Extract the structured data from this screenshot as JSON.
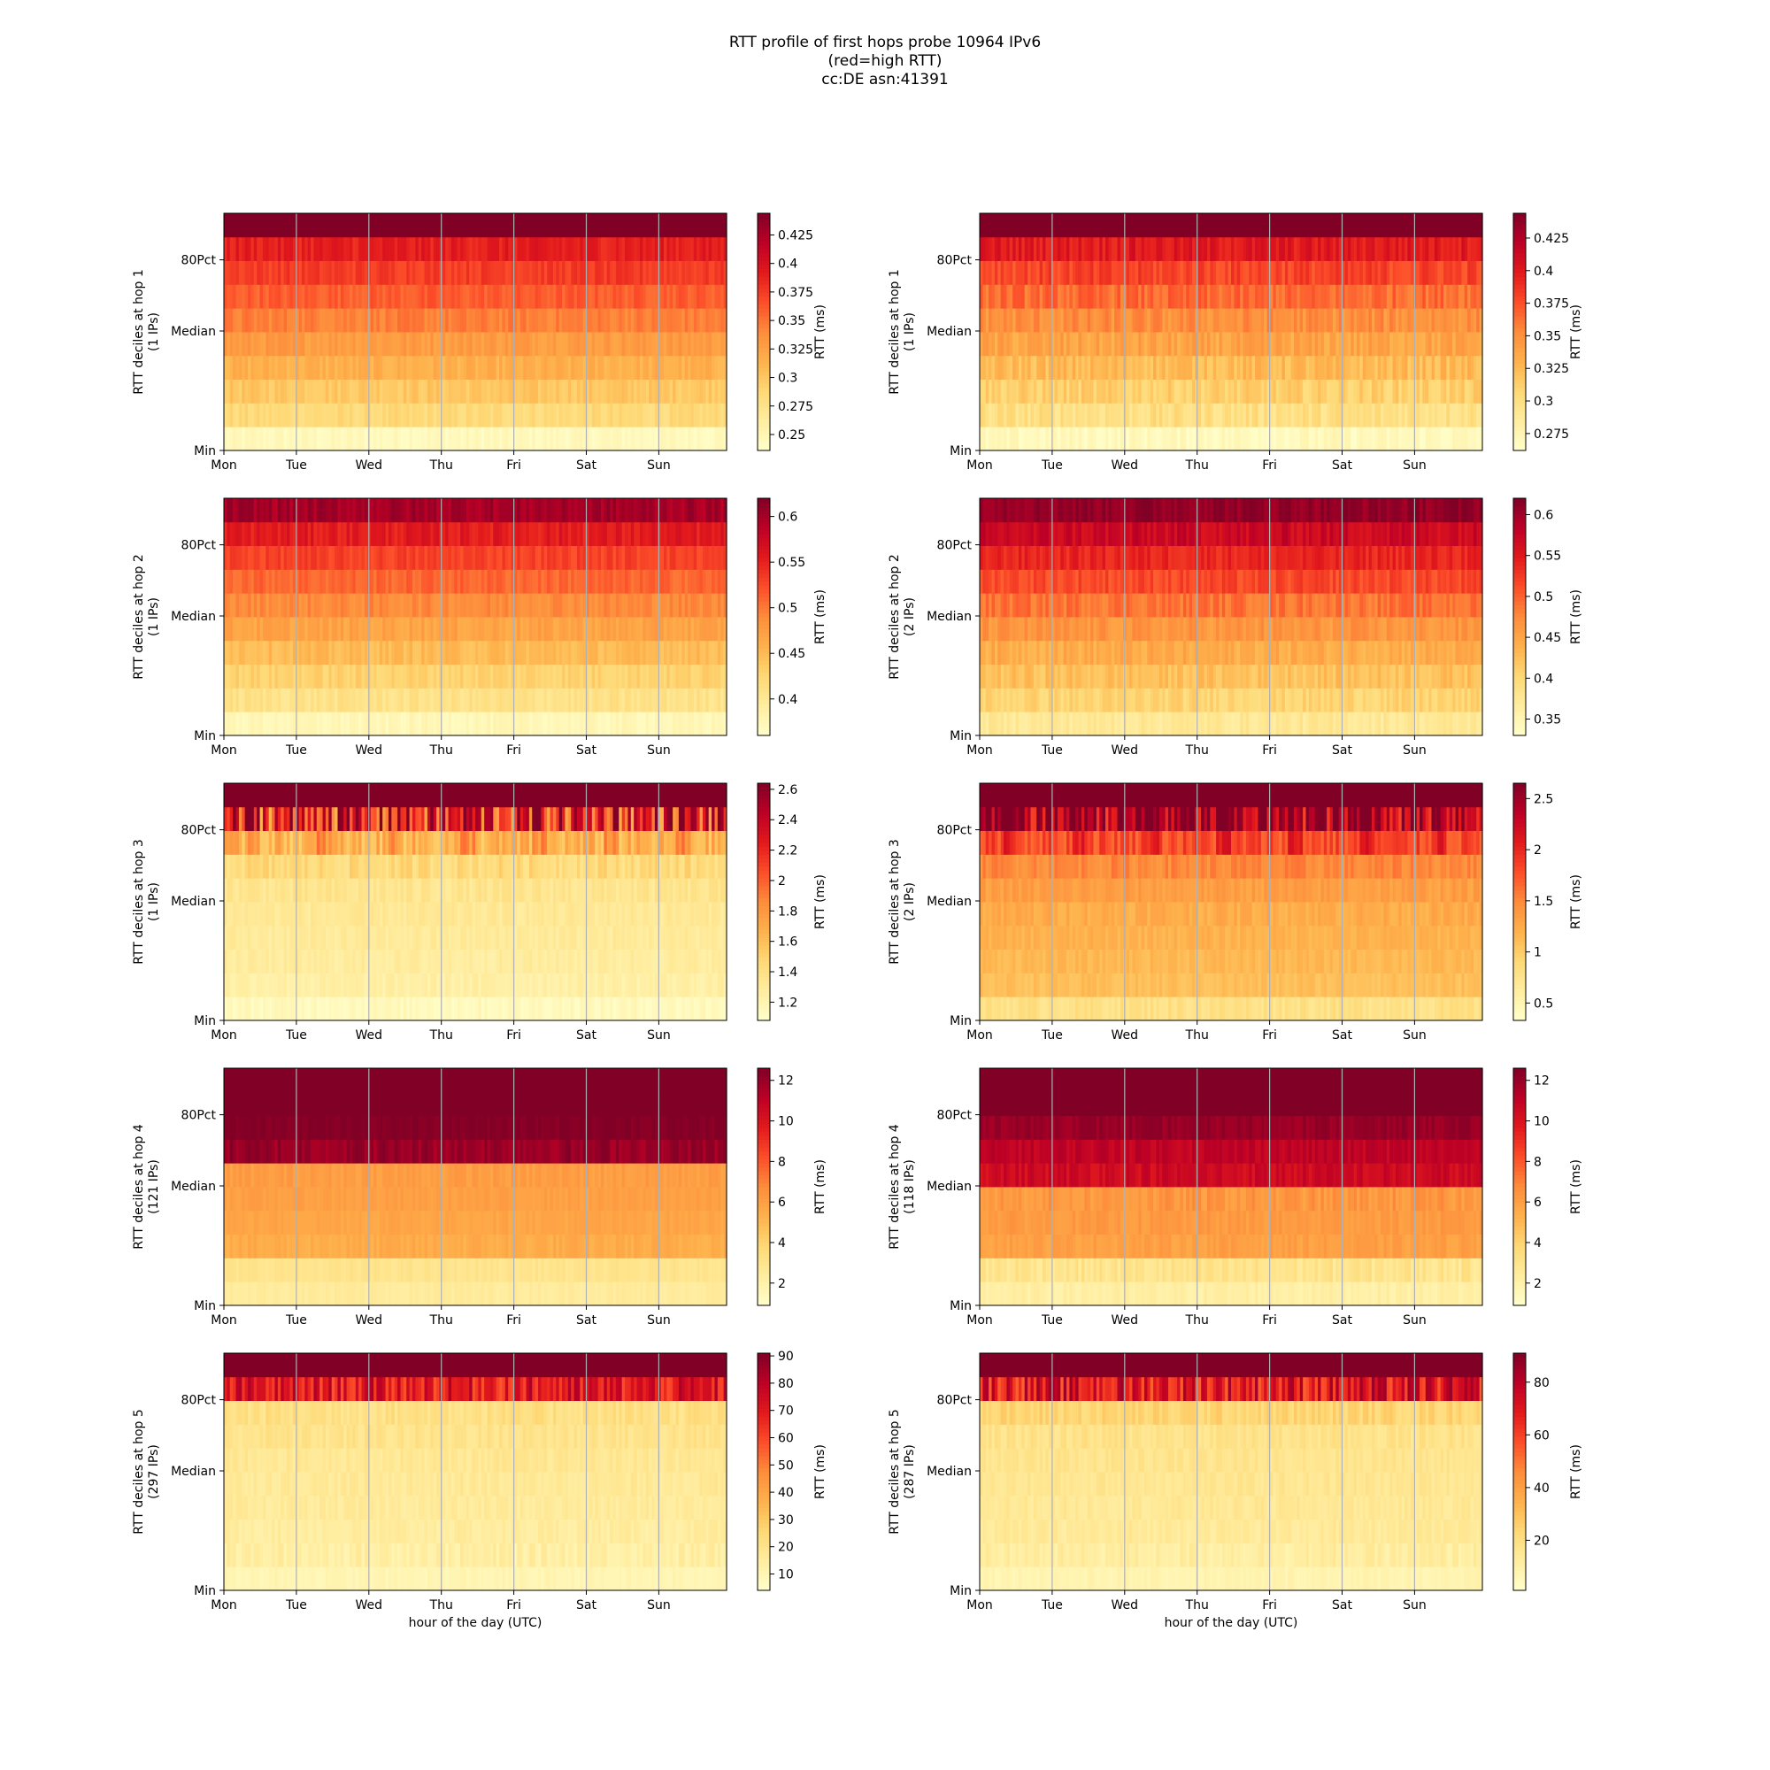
{
  "title_lines": [
    "RTT profile of first hops probe 10964 IPv6",
    "(red=high RTT)",
    "cc:DE asn:41391"
  ],
  "colors": {
    "colormap": "YlOrRd",
    "gridline": "#b0b0b0"
  },
  "chart_data": [
    {
      "type": "heatmap",
      "column": "left",
      "hop": 1,
      "ylabel": "RTT deciles at hop 1\n(1 IPs)",
      "xlabel": "",
      "x_ticks": [
        "Mon",
        "Tue",
        "Wed",
        "Thu",
        "Fri",
        "Sat",
        "Sun"
      ],
      "y_ticks": [
        "Min",
        "Median",
        "80Pct"
      ],
      "colorbar": {
        "label": "RTT (ms)",
        "vmin": 0.236,
        "vmax": 0.444,
        "ticks": [
          0.25,
          0.275,
          0.3,
          0.325,
          0.35,
          0.375,
          0.4,
          0.425
        ]
      },
      "deciles": [
        0.245,
        0.285,
        0.3,
        0.315,
        0.33,
        0.345,
        0.36,
        0.375,
        0.39,
        0.444
      ],
      "noise": [
        0.03,
        0.04,
        0.04,
        0.04,
        0.04,
        0.04,
        0.04,
        0.04,
        0.05,
        0.0
      ],
      "pattern": "flat"
    },
    {
      "type": "heatmap",
      "column": "right",
      "hop": 1,
      "ylabel": "RTT deciles at hop 1\n(1 IPs)",
      "xlabel": "",
      "x_ticks": [
        "Mon",
        "Tue",
        "Wed",
        "Thu",
        "Fri",
        "Sat",
        "Sun"
      ],
      "y_ticks": [
        "Min",
        "Median",
        "80Pct"
      ],
      "colorbar": {
        "label": "RTT (ms)",
        "vmin": 0.262,
        "vmax": 0.444,
        "ticks": [
          0.275,
          0.3,
          0.325,
          0.35,
          0.375,
          0.4,
          0.425
        ]
      },
      "deciles": [
        0.27,
        0.3,
        0.312,
        0.325,
        0.338,
        0.35,
        0.365,
        0.38,
        0.4,
        0.444
      ],
      "noise": [
        0.04,
        0.06,
        0.06,
        0.06,
        0.06,
        0.06,
        0.06,
        0.06,
        0.06,
        0.0
      ],
      "pattern": "flat"
    },
    {
      "type": "heatmap",
      "column": "left",
      "hop": 2,
      "ylabel": "RTT deciles at hop 2\n(1 IPs)",
      "xlabel": "",
      "x_ticks": [
        "Mon",
        "Tue",
        "Wed",
        "Thu",
        "Fri",
        "Sat",
        "Sun"
      ],
      "y_ticks": [
        "Min",
        "Median",
        "80Pct"
      ],
      "colorbar": {
        "label": "RTT (ms)",
        "vmin": 0.36,
        "vmax": 0.62,
        "ticks": [
          0.4,
          0.45,
          0.5,
          0.55,
          0.6
        ]
      },
      "deciles": [
        0.375,
        0.41,
        0.43,
        0.45,
        0.47,
        0.49,
        0.51,
        0.53,
        0.555,
        0.6
      ],
      "noise": [
        0.03,
        0.04,
        0.04,
        0.04,
        0.04,
        0.04,
        0.04,
        0.04,
        0.05,
        0.05
      ],
      "pattern": "flat"
    },
    {
      "type": "heatmap",
      "column": "right",
      "hop": 2,
      "ylabel": "RTT deciles at hop 2\n(2 IPs)",
      "xlabel": "",
      "x_ticks": [
        "Mon",
        "Tue",
        "Wed",
        "Thu",
        "Fri",
        "Sat",
        "Sun"
      ],
      "y_ticks": [
        "Min",
        "Median",
        "80Pct"
      ],
      "colorbar": {
        "label": "RTT (ms)",
        "vmin": 0.33,
        "vmax": 0.62,
        "ticks": [
          0.35,
          0.4,
          0.45,
          0.5,
          0.55,
          0.6
        ]
      },
      "deciles": [
        0.375,
        0.405,
        0.425,
        0.445,
        0.465,
        0.49,
        0.515,
        0.54,
        0.57,
        0.61
      ],
      "noise": [
        0.04,
        0.05,
        0.05,
        0.05,
        0.05,
        0.05,
        0.05,
        0.05,
        0.06,
        0.05
      ],
      "pattern": "flat"
    },
    {
      "type": "heatmap",
      "column": "left",
      "hop": 3,
      "ylabel": "RTT deciles at hop 3\n(1 IPs)",
      "xlabel": "",
      "x_ticks": [
        "Mon",
        "Tue",
        "Wed",
        "Thu",
        "Fri",
        "Sat",
        "Sun"
      ],
      "y_ticks": [
        "Min",
        "Median",
        "80Pct"
      ],
      "colorbar": {
        "label": "RTT (ms)",
        "vmin": 1.08,
        "vmax": 2.64,
        "ticks": [
          1.2,
          1.4,
          1.6,
          1.8,
          2.0,
          2.2,
          2.4,
          2.6
        ]
      },
      "deciles": [
        1.15,
        1.25,
        1.28,
        1.3,
        1.32,
        1.35,
        1.45,
        1.65,
        2.2,
        2.64
      ],
      "noise": [
        0.03,
        0.03,
        0.03,
        0.03,
        0.03,
        0.04,
        0.06,
        0.1,
        0.35,
        0.0
      ],
      "pattern": "daily"
    },
    {
      "type": "heatmap",
      "column": "right",
      "hop": 3,
      "ylabel": "RTT deciles at hop 3\n(2 IPs)",
      "xlabel": "",
      "x_ticks": [
        "Mon",
        "Tue",
        "Wed",
        "Thu",
        "Fri",
        "Sat",
        "Sun"
      ],
      "y_ticks": [
        "Min",
        "Median",
        "80Pct"
      ],
      "colorbar": {
        "label": "RTT (ms)",
        "vmin": 0.33,
        "vmax": 2.65,
        "ticks": [
          0.5,
          1.0,
          1.5,
          2.0,
          2.5
        ]
      },
      "deciles": [
        0.8,
        1.1,
        1.15,
        1.2,
        1.25,
        1.35,
        1.5,
        1.8,
        2.4,
        2.65
      ],
      "noise": [
        0.04,
        0.03,
        0.03,
        0.03,
        0.04,
        0.04,
        0.05,
        0.08,
        0.25,
        0.0
      ],
      "pattern": "daily"
    },
    {
      "type": "heatmap",
      "column": "left",
      "hop": 4,
      "ylabel": "RTT deciles at hop 4\n(121 IPs)",
      "xlabel": "",
      "x_ticks": [
        "Mon",
        "Tue",
        "Wed",
        "Thu",
        "Fri",
        "Sat",
        "Sun"
      ],
      "y_ticks": [
        "Min",
        "Median",
        "80Pct"
      ],
      "colorbar": {
        "label": "RTT (ms)",
        "vmin": 0.9,
        "vmax": 12.6,
        "ticks": [
          2,
          4,
          6,
          8,
          10,
          12
        ]
      },
      "deciles": [
        2.5,
        3.0,
        5.5,
        5.8,
        6.0,
        6.1,
        12.0,
        12.5,
        12.6,
        12.6
      ],
      "noise": [
        0.02,
        0.02,
        0.03,
        0.02,
        0.02,
        0.03,
        0.05,
        0.02,
        0.0,
        0.0
      ],
      "pattern": "flat"
    },
    {
      "type": "heatmap",
      "column": "right",
      "hop": 4,
      "ylabel": "RTT deciles at hop 4\n(118 IPs)",
      "xlabel": "",
      "x_ticks": [
        "Mon",
        "Tue",
        "Wed",
        "Thu",
        "Fri",
        "Sat",
        "Sun"
      ],
      "y_ticks": [
        "Min",
        "Median",
        "80Pct"
      ],
      "colorbar": {
        "label": "RTT (ms)",
        "vmin": 0.9,
        "vmax": 12.6,
        "ticks": [
          2,
          4,
          6,
          8,
          10,
          12
        ]
      },
      "deciles": [
        2.2,
        3.0,
        6.0,
        6.2,
        6.3,
        10.5,
        11.0,
        12.0,
        12.6,
        12.6
      ],
      "noise": [
        0.03,
        0.05,
        0.03,
        0.03,
        0.05,
        0.05,
        0.04,
        0.03,
        0.0,
        0.0
      ],
      "pattern": "flat"
    },
    {
      "type": "heatmap",
      "column": "left",
      "hop": 5,
      "ylabel": "RTT deciles at hop 5\n(297 IPs)",
      "xlabel": "hour of the day (UTC)",
      "x_ticks": [
        "Mon",
        "Tue",
        "Wed",
        "Thu",
        "Fri",
        "Sat",
        "Sun"
      ],
      "y_ticks": [
        "Min",
        "Median",
        "80Pct"
      ],
      "colorbar": {
        "label": "RTT (ms)",
        "vmin": 4,
        "vmax": 91,
        "ticks": [
          10,
          20,
          30,
          40,
          50,
          60,
          70,
          80,
          90
        ]
      },
      "deciles": [
        10,
        14,
        15,
        16,
        17,
        18,
        20,
        22,
        70,
        91
      ],
      "noise": [
        0.02,
        0.04,
        0.03,
        0.03,
        0.03,
        0.03,
        0.04,
        0.05,
        0.15,
        0.0
      ],
      "pattern": "flat"
    },
    {
      "type": "heatmap",
      "column": "right",
      "hop": 5,
      "ylabel": "RTT deciles at hop 5\n(287 IPs)",
      "xlabel": "hour of the day (UTC)",
      "x_ticks": [
        "Mon",
        "Tue",
        "Wed",
        "Thu",
        "Fri",
        "Sat",
        "Sun"
      ],
      "y_ticks": [
        "Min",
        "Median",
        "80Pct"
      ],
      "colorbar": {
        "label": "RTT (ms)",
        "vmin": 1,
        "vmax": 91,
        "ticks": [
          20,
          40,
          60,
          80
        ]
      },
      "deciles": [
        8,
        12,
        14,
        15,
        16,
        17,
        18,
        24,
        70,
        91
      ],
      "noise": [
        0.02,
        0.04,
        0.03,
        0.03,
        0.03,
        0.03,
        0.04,
        0.05,
        0.18,
        0.0
      ],
      "pattern": "flat"
    }
  ]
}
